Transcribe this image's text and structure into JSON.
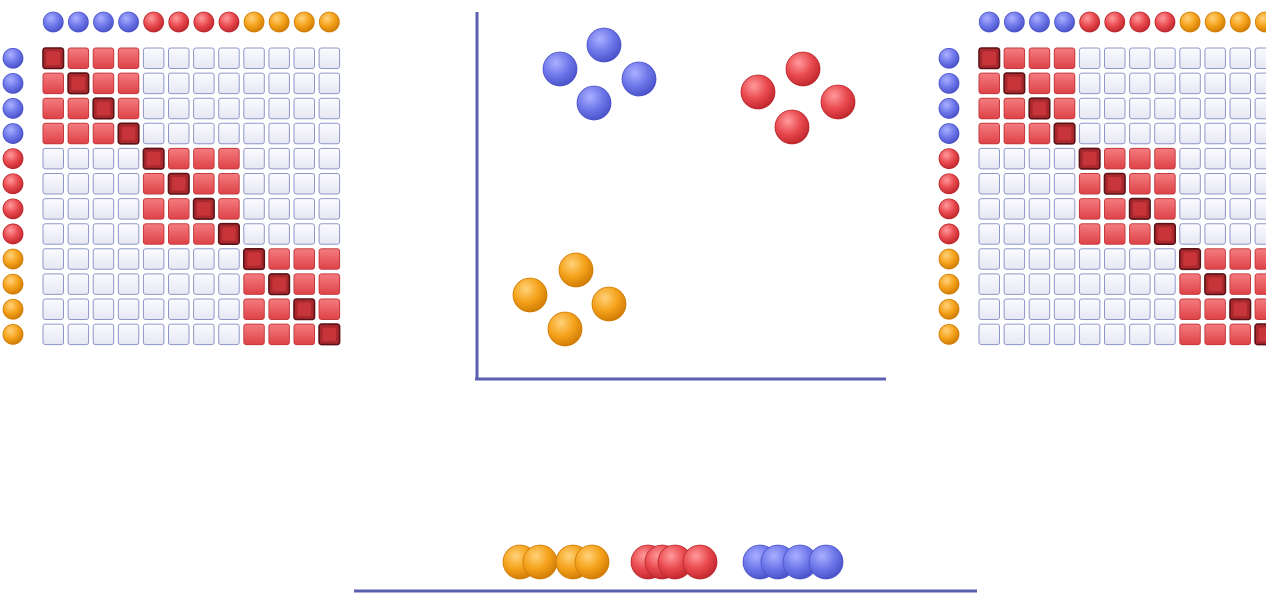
{
  "colors": {
    "background": "#ffffff",
    "axis": "#5b5fb0",
    "blue": "#6f78ea",
    "red": "#e94a4f",
    "orange": "#f5a21b",
    "cell_empty": "#eeeef8",
    "cell_empty_border": "#8f96c8",
    "cell_fill": "#ec5d61",
    "cell_fill_border": "#c53a3f",
    "cell_diag": "#a8282d",
    "cell_diag_border": "#5a1216"
  },
  "similarity_matrices": [
    {
      "labels": [
        "blue",
        "blue",
        "blue",
        "blue",
        "red",
        "red",
        "red",
        "red",
        "orange",
        "orange",
        "orange",
        "orange"
      ],
      "block_sizes": [
        4,
        4,
        4
      ]
    },
    {
      "labels": [
        "blue",
        "blue",
        "blue",
        "blue",
        "red",
        "red",
        "red",
        "red",
        "orange",
        "orange",
        "orange",
        "orange"
      ],
      "block_sizes": [
        4,
        4,
        4
      ]
    }
  ],
  "scatter_2d": {
    "clusters": [
      {
        "group": "blue",
        "count": 4
      },
      {
        "group": "red",
        "count": 4
      },
      {
        "group": "orange",
        "count": 4
      }
    ]
  },
  "line_1d": {
    "order": [
      "orange",
      "red",
      "blue"
    ],
    "points_per_group": 4
  }
}
